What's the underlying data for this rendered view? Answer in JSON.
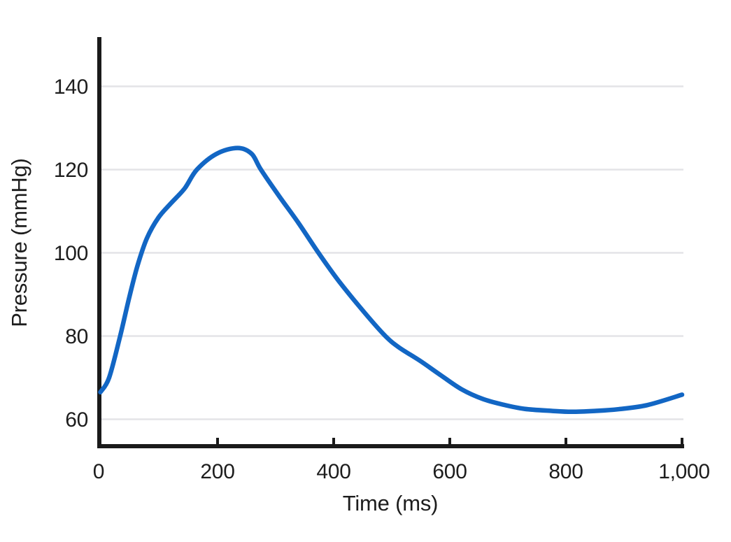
{
  "chart_data": {
    "type": "line",
    "title": "",
    "xlabel": "Time (ms)",
    "ylabel": "Pressure (mmHg)",
    "xlim": [
      0,
      1000
    ],
    "ylim": [
      54,
      152
    ],
    "xticks": [
      0,
      200,
      400,
      600,
      800,
      1000
    ],
    "xtick_labels": [
      "0",
      "200",
      "400",
      "600",
      "800",
      "1,000"
    ],
    "yticks": [
      140,
      120,
      100,
      80,
      60
    ],
    "ytick_labels": [
      "140",
      "120",
      "100",
      "80",
      "60"
    ],
    "grid": "horizontal-only",
    "legend": "none",
    "series": [
      {
        "points": [
          [
            0,
            66.5
          ],
          [
            15,
            70
          ],
          [
            34,
            80
          ],
          [
            50,
            89.5
          ],
          [
            64,
            97
          ],
          [
            80,
            103.5
          ],
          [
            100,
            108.5
          ],
          [
            122,
            112
          ],
          [
            145,
            115.5
          ],
          [
            166,
            120
          ],
          [
            200,
            123.8
          ],
          [
            236,
            125.2
          ],
          [
            260,
            123.8
          ],
          [
            276,
            120
          ],
          [
            308,
            113.5
          ],
          [
            340,
            107.3
          ],
          [
            375,
            100
          ],
          [
            410,
            93.2
          ],
          [
            455,
            85.5
          ],
          [
            490,
            80
          ],
          [
            513,
            77.3
          ],
          [
            549,
            74.1
          ],
          [
            585,
            70.6
          ],
          [
            621,
            67.2
          ],
          [
            657,
            64.9
          ],
          [
            693,
            63.5
          ],
          [
            729,
            62.5
          ],
          [
            777,
            62.0
          ],
          [
            810,
            61.8
          ],
          [
            850,
            62.0
          ],
          [
            890,
            62.4
          ],
          [
            940,
            63.4
          ],
          [
            1000,
            65.9
          ]
        ]
      }
    ],
    "key_values": {
      "systolic_peak_mmHg": 125,
      "peak_time_ms": 236,
      "diastolic_min_mmHg": 62,
      "min_time_ms": 800,
      "start_value_mmHg": 66.5,
      "end_value_mmHg": 66
    }
  },
  "colors": {
    "line": "#1266c4",
    "gridline": "#e4e4e7",
    "axis": "#1a1a1a",
    "text": "#1d1d1d",
    "background": "#ffffff"
  }
}
